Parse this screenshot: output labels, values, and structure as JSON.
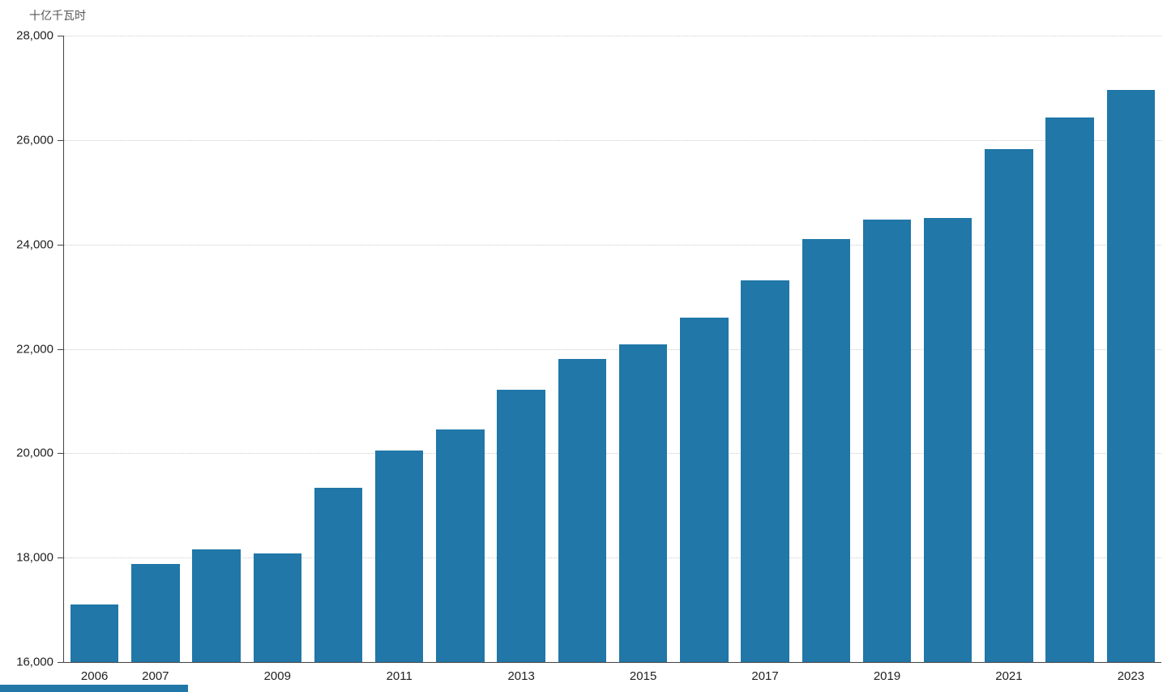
{
  "chart_data": {
    "type": "bar",
    "title": "",
    "unit_label": "十亿千瓦时",
    "categories": [
      2006,
      2007,
      2008,
      2009,
      2010,
      2011,
      2012,
      2013,
      2014,
      2015,
      2016,
      2017,
      2018,
      2019,
      2020,
      2021,
      2022,
      2023
    ],
    "values": [
      17100,
      17880,
      18160,
      18080,
      19340,
      20050,
      20460,
      21220,
      21810,
      22080,
      22600,
      23310,
      24110,
      24480,
      24500,
      25830,
      26430,
      26960
    ],
    "x_tick_labels": [
      "2006",
      "2007",
      "2009",
      "2011",
      "2013",
      "2015",
      "2017",
      "2019",
      "2021",
      "2023"
    ],
    "y_ticks": [
      16000,
      18000,
      20000,
      22000,
      24000,
      26000,
      28000
    ],
    "ylim": [
      16000,
      28000
    ],
    "grid": "horizontal-dotted",
    "legend": "none",
    "bar_color": "#2077A8",
    "axis_color": "#444444",
    "grid_color": "#cccccc",
    "text_color": "#222222",
    "unit_label_color": "#555555"
  },
  "footer": {
    "strip_color": "#2077A8"
  }
}
